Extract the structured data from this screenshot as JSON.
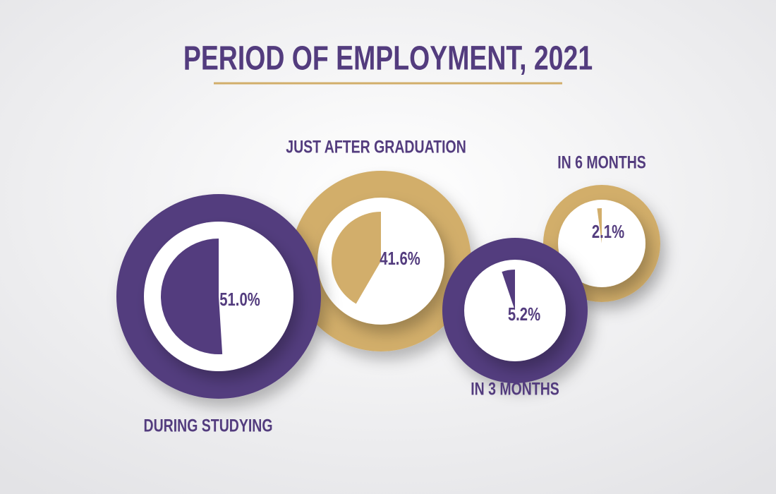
{
  "chart_data": {
    "type": "pie",
    "title": "PERIOD OF EMPLOYMENT, 2021",
    "categories": [
      "DURING STUDYING",
      "JUST AFTER GRADUATION",
      "IN 3 MONTHS",
      "IN 6 MONTHS"
    ],
    "values": [
      51.0,
      41.6,
      5.2,
      2.1
    ],
    "value_labels": [
      "51.0%",
      "41.6%",
      "5.2%",
      "2.1%"
    ],
    "colors": [
      "#533c7e",
      "#d2ae6b",
      "#533c7e",
      "#d2ae6b"
    ]
  }
}
